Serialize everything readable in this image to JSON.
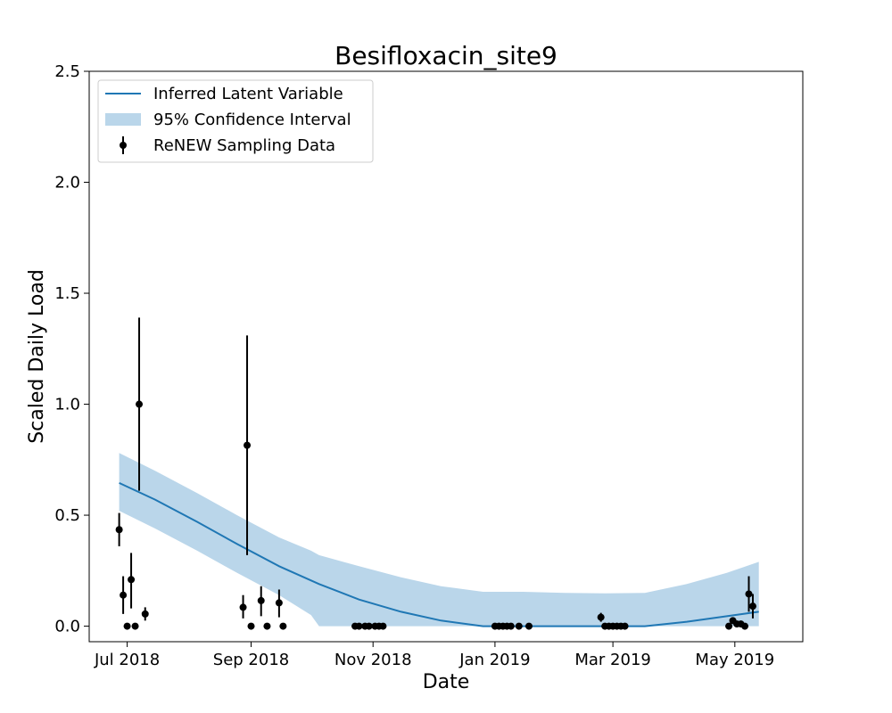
{
  "chart_data": {
    "type": "line",
    "title": "Besifloxacin_site9",
    "xlabel": "Date",
    "ylabel": "Scaled Daily Load",
    "xlim": [
      "2018-06-12",
      "2019-06-04"
    ],
    "ylim": [
      -0.07,
      2.5
    ],
    "x_ticks": [
      {
        "date": "2018-07-01",
        "label": "Jul 2018"
      },
      {
        "date": "2018-09-01",
        "label": "Sep 2018"
      },
      {
        "date": "2018-11-01",
        "label": "Nov 2018"
      },
      {
        "date": "2019-01-01",
        "label": "Jan 2019"
      },
      {
        "date": "2019-03-01",
        "label": "Mar 2019"
      },
      {
        "date": "2019-05-01",
        "label": "May 2019"
      }
    ],
    "y_ticks": [
      {
        "value": 0.0,
        "label": "0.0"
      },
      {
        "value": 0.5,
        "label": "0.5"
      },
      {
        "value": 1.0,
        "label": "1.0"
      },
      {
        "value": 1.5,
        "label": "1.5"
      },
      {
        "value": 2.0,
        "label": "2.0"
      },
      {
        "value": 2.5,
        "label": "2.5"
      }
    ],
    "legend": {
      "placement": "top-left",
      "entries": [
        "Inferred Latent Variable",
        "95% Confidence Interval",
        "ReNEW Sampling Data"
      ]
    },
    "colors": {
      "line": "#1f77b4",
      "band": "#bad6ea",
      "points": "#000000"
    },
    "series": [
      {
        "name": "Inferred Latent Variable",
        "kind": "line",
        "x": [
          "2018-06-27",
          "2018-07-15",
          "2018-08-05",
          "2018-08-25",
          "2018-09-15",
          "2018-10-05",
          "2018-10-25",
          "2018-11-15",
          "2018-12-05",
          "2018-12-26",
          "2019-01-15",
          "2019-02-05",
          "2019-02-25",
          "2019-03-17",
          "2019-04-07",
          "2019-04-27",
          "2019-05-13"
        ],
        "y": [
          0.645,
          0.57,
          0.47,
          0.37,
          0.27,
          0.19,
          0.12,
          0.065,
          0.025,
          0.0,
          0.0,
          0.0,
          0.0,
          0.0,
          0.02,
          0.045,
          0.065
        ]
      },
      {
        "name": "95% Confidence Interval",
        "kind": "band",
        "x": [
          "2018-06-27",
          "2018-07-15",
          "2018-08-05",
          "2018-08-25",
          "2018-09-15",
          "2018-10-01",
          "2018-10-05",
          "2018-10-25",
          "2018-11-15",
          "2018-12-05",
          "2018-12-26",
          "2019-01-15",
          "2019-02-05",
          "2019-02-25",
          "2019-03-17",
          "2019-04-07",
          "2019-04-27",
          "2019-05-13"
        ],
        "lower": [
          0.52,
          0.44,
          0.34,
          0.24,
          0.14,
          0.05,
          0.0,
          0.0,
          0.0,
          0.0,
          0.0,
          0.0,
          0.0,
          0.0,
          0.0,
          0.0,
          0.0,
          0.0
        ],
        "upper": [
          0.78,
          0.7,
          0.6,
          0.5,
          0.4,
          0.34,
          0.32,
          0.27,
          0.22,
          0.18,
          0.155,
          0.155,
          0.15,
          0.148,
          0.15,
          0.19,
          0.24,
          0.29
        ]
      },
      {
        "name": "ReNEW Sampling Data",
        "kind": "errorbar",
        "points": [
          {
            "x": "2018-06-27",
            "y": 0.435,
            "lo": 0.36,
            "hi": 0.51
          },
          {
            "x": "2018-06-29",
            "y": 0.14,
            "lo": 0.055,
            "hi": 0.225
          },
          {
            "x": "2018-07-01",
            "y": 0.0
          },
          {
            "x": "2018-07-03",
            "y": 0.21,
            "lo": 0.08,
            "hi": 0.33
          },
          {
            "x": "2018-07-05",
            "y": 0.0
          },
          {
            "x": "2018-07-07",
            "y": 1.0,
            "lo": 0.61,
            "hi": 1.39
          },
          {
            "x": "2018-07-10",
            "y": 0.055,
            "lo": 0.025,
            "hi": 0.085
          },
          {
            "x": "2018-08-28",
            "y": 0.085,
            "lo": 0.035,
            "hi": 0.14
          },
          {
            "x": "2018-08-30",
            "y": 0.815,
            "lo": 0.32,
            "hi": 1.31
          },
          {
            "x": "2018-09-01",
            "y": 0.0
          },
          {
            "x": "2018-09-06",
            "y": 0.115,
            "lo": 0.045,
            "hi": 0.18
          },
          {
            "x": "2018-09-09",
            "y": 0.0
          },
          {
            "x": "2018-09-15",
            "y": 0.105,
            "lo": 0.04,
            "hi": 0.165
          },
          {
            "x": "2018-09-17",
            "y": 0.0
          },
          {
            "x": "2018-10-23",
            "y": 0.0
          },
          {
            "x": "2018-10-25",
            "y": 0.0
          },
          {
            "x": "2018-10-28",
            "y": 0.0
          },
          {
            "x": "2018-10-30",
            "y": 0.0
          },
          {
            "x": "2018-11-02",
            "y": 0.0
          },
          {
            "x": "2018-11-04",
            "y": 0.0
          },
          {
            "x": "2018-11-06",
            "y": 0.0
          },
          {
            "x": "2019-01-01",
            "y": 0.0
          },
          {
            "x": "2019-01-03",
            "y": 0.0
          },
          {
            "x": "2019-01-05",
            "y": 0.0
          },
          {
            "x": "2019-01-07",
            "y": 0.0
          },
          {
            "x": "2019-01-09",
            "y": 0.0
          },
          {
            "x": "2019-01-13",
            "y": 0.0
          },
          {
            "x": "2019-01-18",
            "y": 0.0
          },
          {
            "x": "2019-02-23",
            "y": 0.04,
            "lo": 0.02,
            "hi": 0.06
          },
          {
            "x": "2019-02-25",
            "y": 0.0
          },
          {
            "x": "2019-02-27",
            "y": 0.0
          },
          {
            "x": "2019-03-01",
            "y": 0.0
          },
          {
            "x": "2019-03-03",
            "y": 0.0
          },
          {
            "x": "2019-03-05",
            "y": 0.0
          },
          {
            "x": "2019-03-07",
            "y": 0.0
          },
          {
            "x": "2019-04-28",
            "y": 0.0
          },
          {
            "x": "2019-04-30",
            "y": 0.025
          },
          {
            "x": "2019-05-02",
            "y": 0.01
          },
          {
            "x": "2019-05-04",
            "y": 0.01
          },
          {
            "x": "2019-05-06",
            "y": 0.0
          },
          {
            "x": "2019-05-08",
            "y": 0.145,
            "lo": 0.065,
            "hi": 0.225
          },
          {
            "x": "2019-05-10",
            "y": 0.09,
            "lo": 0.035,
            "hi": 0.145
          }
        ]
      }
    ],
    "grid": false
  }
}
